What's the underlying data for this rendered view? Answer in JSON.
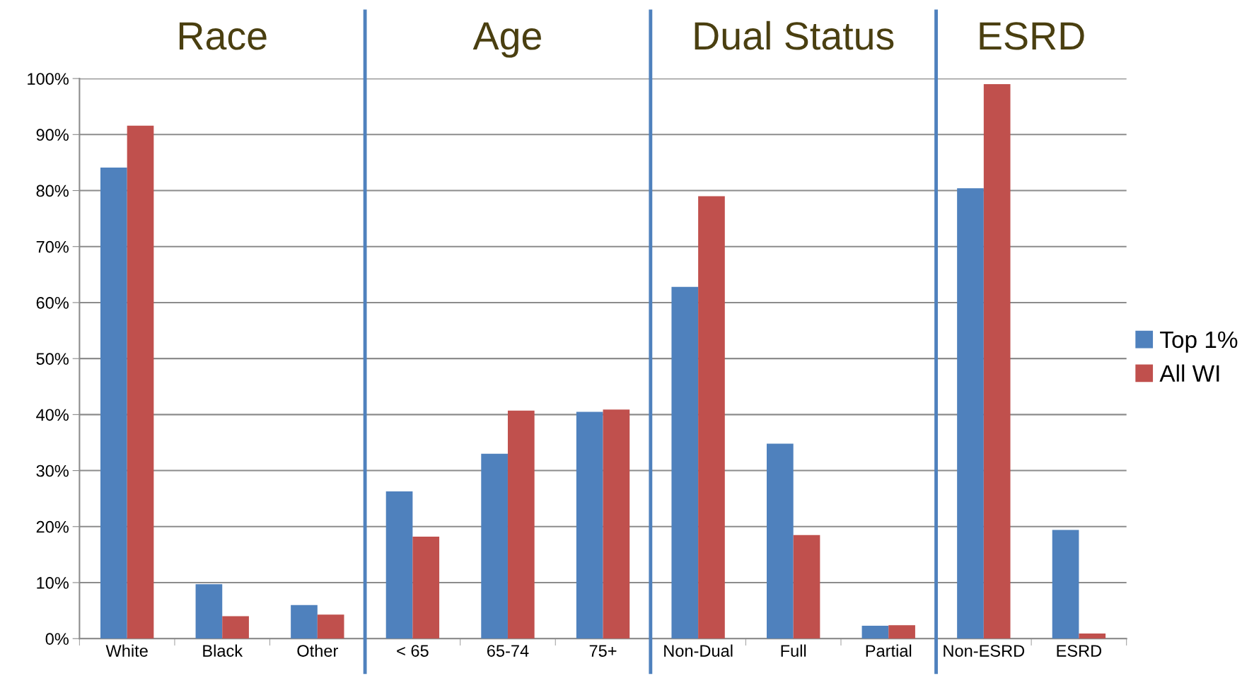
{
  "chart_data": {
    "type": "bar",
    "categories": [
      "White",
      "Black",
      "Other",
      "< 65",
      "65-74",
      "75+",
      "Non-Dual",
      "Full",
      "Partial",
      "Non-ESRD",
      "ESRD"
    ],
    "series": [
      {
        "name": "Top 1%",
        "color": "#4f81bd",
        "values": [
          84.1,
          9.7,
          6.0,
          26.3,
          33.0,
          40.5,
          62.8,
          34.8,
          2.3,
          80.4,
          19.4
        ]
      },
      {
        "name": "All WI",
        "color": "#c0504d",
        "values": [
          91.6,
          4.0,
          4.3,
          18.2,
          40.7,
          40.9,
          79.0,
          18.5,
          2.4,
          99.0,
          0.9
        ]
      }
    ],
    "ylim": [
      0,
      100
    ],
    "yticks": [
      {
        "value": 0,
        "label": "0%"
      },
      {
        "value": 10,
        "label": "10%"
      },
      {
        "value": 20,
        "label": "20%"
      },
      {
        "value": 30,
        "label": "30%"
      },
      {
        "value": 40,
        "label": "40%"
      },
      {
        "value": 50,
        "label": "50%"
      },
      {
        "value": 60,
        "label": "60%"
      },
      {
        "value": 70,
        "label": "70%"
      },
      {
        "value": 80,
        "label": "80%"
      },
      {
        "value": 90,
        "label": "90%"
      },
      {
        "value": 100,
        "label": "100%"
      }
    ],
    "annotations": [
      "Race",
      "Age",
      "Dual Status",
      "ESRD"
    ],
    "grid": "y",
    "legend": "right"
  }
}
